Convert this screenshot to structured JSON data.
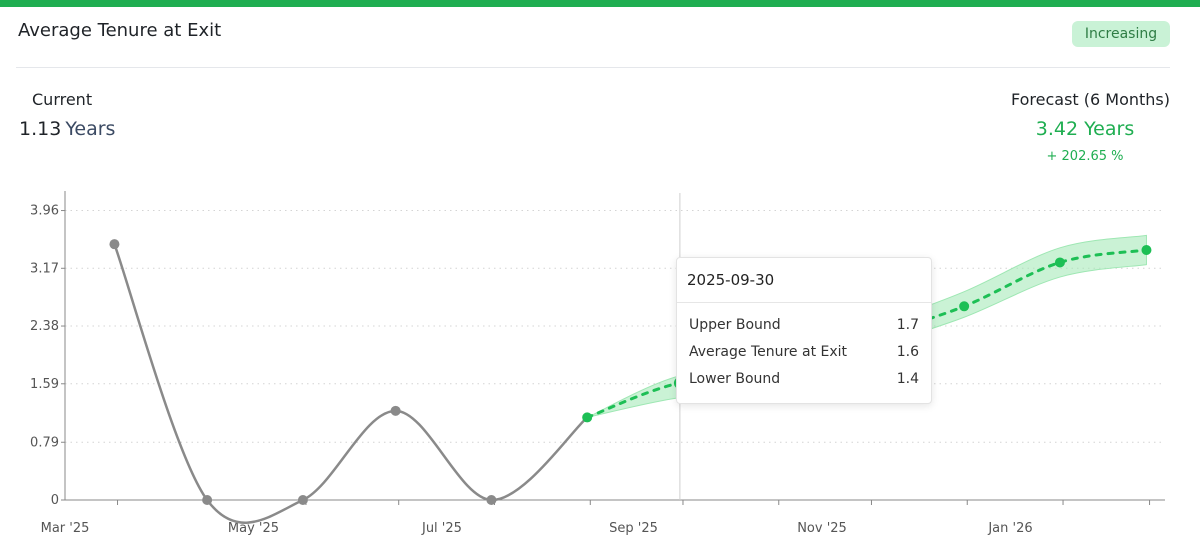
{
  "card": {
    "title": "Average Tenure at Exit",
    "badge": "Increasing"
  },
  "current": {
    "label": "Current",
    "value": "1.13",
    "unit": "Years"
  },
  "forecast": {
    "label": "Forecast (6 Months)",
    "value": "3.42 Years",
    "change": "+ 202.65 %"
  },
  "tooltip": {
    "date": "2025-09-30",
    "rows": [
      {
        "label": "Upper Bound",
        "value": "1.7"
      },
      {
        "label": "Average Tenure at Exit",
        "value": "1.6"
      },
      {
        "label": "Lower Bound",
        "value": "1.4"
      }
    ]
  },
  "colors": {
    "accent": "#1fae51",
    "historical": "#8a8a8a",
    "forecast": "#1dbf55",
    "band": "#9ee7b3",
    "badge_bg": "#c9f2d6"
  },
  "chart_data": {
    "type": "line",
    "x_axis_labels": [
      "Mar '25",
      "May '25",
      "Jul '25",
      "Sep '25",
      "Nov '25",
      "Jan '26"
    ],
    "y_axis_ticks": [
      "0",
      "0.79",
      "1.59",
      "2.38",
      "3.17",
      "3.96"
    ],
    "ylim": [
      0,
      4.2
    ],
    "grid": true,
    "series": [
      {
        "name": "",
        "x": [
          "2025-03-31",
          "2025-04-30",
          "2025-05-31",
          "2025-06-30",
          "2025-07-31",
          "2025-08-31"
        ],
        "values": [
          3.5,
          0,
          0,
          1.22,
          0,
          1.13
        ]
      },
      {
        "name": "Average Tenure at Exit",
        "x": [
          "2025-08-31",
          "2025-09-30",
          "2025-10-31",
          "2025-11-30",
          "2025-12-31",
          "2026-01-31",
          "2026-02-28"
        ],
        "values": [
          1.13,
          1.6,
          1.65,
          2.2,
          2.65,
          3.25,
          3.42
        ]
      },
      {
        "name": "Upper Bound",
        "x": [
          "2025-08-31",
          "2025-09-30",
          "2025-10-31",
          "2025-11-30",
          "2025-12-31",
          "2026-01-31",
          "2026-02-28"
        ],
        "values": [
          1.13,
          1.7,
          1.8,
          2.35,
          2.85,
          3.45,
          3.62
        ]
      },
      {
        "name": "Lower Bound",
        "x": [
          "2025-08-31",
          "2025-09-30",
          "2025-10-31",
          "2025-11-30",
          "2025-12-31",
          "2026-01-31",
          "2026-02-28"
        ],
        "values": [
          1.13,
          1.4,
          1.5,
          2.05,
          2.5,
          3.05,
          3.22
        ]
      }
    ],
    "hover": {
      "x": "2025-09-30"
    }
  }
}
